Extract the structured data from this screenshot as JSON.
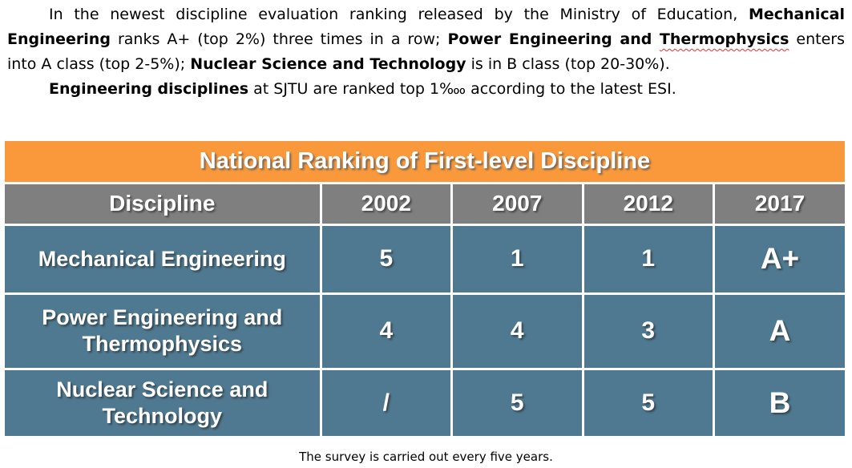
{
  "intro": {
    "p1": {
      "seg1": "In the newest discipline evaluation ranking released by the Ministry of Education, ",
      "seg2": "Mechanical Engineering",
      "seg3": " ranks A+  (top 2%)  three times in a row; ",
      "seg4": "Power Engineering and ",
      "seg5": "Thermophysics",
      "seg6": " enters into A class (top 2-5%); ",
      "seg7": "Nuclear Science and Technology",
      "seg8": " is in B class (top 20-30%)."
    },
    "p2": {
      "seg1": "Engineering disciplines",
      "seg2": " at SJTU are ranked top 1‱ according to the latest ESI."
    }
  },
  "table": {
    "title": "National Ranking of First-level Discipline",
    "header": [
      "Discipline",
      "2002",
      "2007",
      "2012",
      "2017"
    ],
    "rows": [
      {
        "discipline": "Mechanical Engineering",
        "y2002": "5",
        "y2007": "1",
        "y2012": "1",
        "y2017": "A+"
      },
      {
        "discipline": "Power Engineering and Thermophysics",
        "y2002": "4",
        "y2007": "4",
        "y2012": "3",
        "y2017": "A"
      },
      {
        "discipline": "Nuclear Science and Technology",
        "y2002": "/",
        "y2007": "5",
        "y2012": "5",
        "y2017": "B"
      }
    ],
    "caption": "The survey is carried out every five years."
  },
  "colors": {
    "title_bar_bg": "#F9993B",
    "header_row_bg": "#7F7F7F",
    "body_row_bg": "#4F7990",
    "grade_text": "#F2993B",
    "table_text": "#FFFFFF",
    "spellcheck_underline": "#FF2A2A"
  }
}
